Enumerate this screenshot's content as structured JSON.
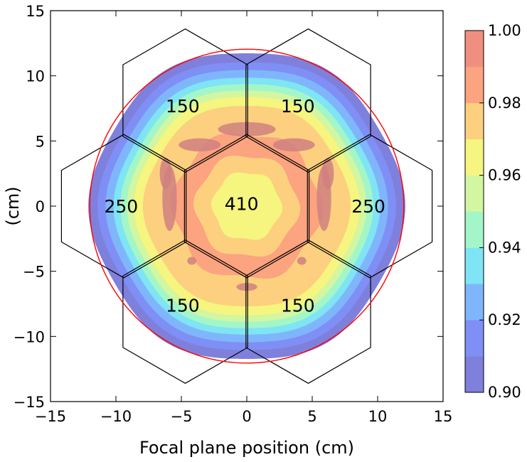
{
  "chart_data": {
    "type": "heatmap",
    "title": "",
    "xlabel": "Focal plane position (cm)",
    "ylabel": "(cm)",
    "xlim": [
      -15,
      15
    ],
    "ylim": [
      -15,
      15
    ],
    "x_ticks": [
      "−15",
      "−10",
      "−5",
      "0",
      "5",
      "10",
      "15"
    ],
    "y_ticks": [
      "−15",
      "−10",
      "−5",
      "0",
      "5",
      "10",
      "15"
    ],
    "x_tick_values": [
      -15,
      -10,
      -5,
      0,
      5,
      10,
      15
    ],
    "y_tick_values": [
      -15,
      -10,
      -5,
      0,
      5,
      10,
      15
    ],
    "colorbar": {
      "range": [
        0.9,
        1.0
      ],
      "tick_values": [
        0.9,
        0.92,
        0.94,
        0.96,
        0.98,
        1.0
      ],
      "tick_labels": [
        "0.90",
        "0.92",
        "0.94",
        "0.96",
        "0.98",
        "1.00"
      ],
      "levels": [
        0.9,
        0.91,
        0.92,
        0.93,
        0.94,
        0.95,
        0.96,
        0.97,
        0.98,
        0.99,
        1.0
      ],
      "colors": [
        "#7f80dc",
        "#7f8ff5",
        "#7fb6fb",
        "#7fe4f4",
        "#a3f6c8",
        "#d2f6a1",
        "#f5f57f",
        "#fcd07f",
        "#fca37f",
        "#f08f7f",
        "#d08080"
      ]
    },
    "field_of_view": {
      "center": [
        0,
        0
      ],
      "radius_cm": 12.0,
      "edge_color": "#ff0000"
    },
    "contour_radii_cm": [
      {
        "level_min": 0.9,
        "radius": 11.9
      },
      {
        "level_min": 0.91,
        "radius": 11.2
      },
      {
        "level_min": 0.92,
        "radius": 10.6
      },
      {
        "level_min": 0.93,
        "radius": 10.0
      },
      {
        "level_min": 0.94,
        "radius": 9.5
      },
      {
        "level_min": 0.95,
        "radius": 9.0
      },
      {
        "level_min": 0.96,
        "radius": 8.5
      },
      {
        "level_min": 0.97,
        "radius": 7.8
      },
      {
        "level_min": 0.98,
        "radius": 5.6
      },
      {
        "level_min": 0.97,
        "radius": 3.9
      },
      {
        "level_min": 0.96,
        "radius": 2.6
      }
    ],
    "wafers": [
      {
        "label": "410",
        "cx": 0,
        "cy": 0
      },
      {
        "label": "150",
        "cx": -4.7,
        "cy": 8.1
      },
      {
        "label": "150",
        "cx": 4.7,
        "cy": 8.1
      },
      {
        "label": "250",
        "cx": -9.4,
        "cy": 0
      },
      {
        "label": "250",
        "cx": 9.4,
        "cy": 0
      },
      {
        "label": "150",
        "cx": -4.7,
        "cy": -8.1
      },
      {
        "label": "150",
        "cx": 4.7,
        "cy": -8.1
      }
    ],
    "wafer_label_positions": [
      {
        "label": "410",
        "x": -0.4,
        "y": 0.2
      },
      {
        "label": "150",
        "x": -4.9,
        "y": 7.7
      },
      {
        "label": "150",
        "x": 3.9,
        "y": 7.7
      },
      {
        "label": "250",
        "x": -9.6,
        "y": 0.0
      },
      {
        "label": "250",
        "x": 9.3,
        "y": 0.0
      },
      {
        "label": "150",
        "x": -4.9,
        "y": -7.6
      },
      {
        "label": "150",
        "x": 3.9,
        "y": -7.6
      }
    ]
  }
}
